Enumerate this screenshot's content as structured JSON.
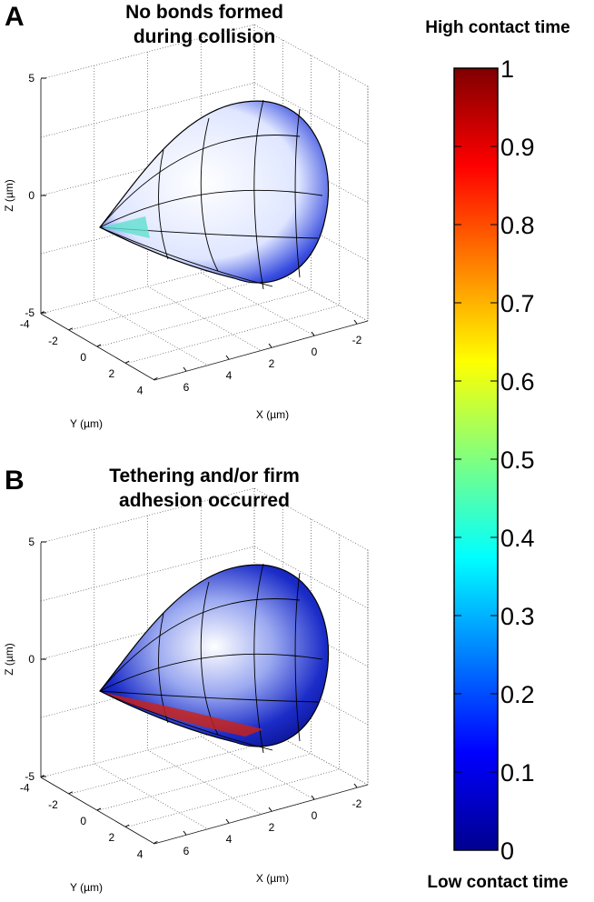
{
  "panels": [
    {
      "label": "A",
      "title": [
        "No bonds formed",
        "during collision"
      ],
      "zticks": [
        5,
        0,
        -5
      ],
      "yticks": [
        -4,
        -2,
        0,
        2,
        4
      ],
      "xticks": [
        6,
        4,
        2,
        0,
        -2
      ],
      "xlabel": "X (µm)",
      "ylabel": "Y (µm)",
      "zlabel": "Z (µm)"
    },
    {
      "label": "B",
      "title": [
        "Tethering and/or firm",
        "adhesion occurred"
      ],
      "zticks": [
        5,
        0,
        -5
      ],
      "yticks": [
        -4,
        -2,
        0,
        2,
        4
      ],
      "xticks": [
        6,
        4,
        2,
        0,
        -2
      ],
      "xlabel": "X (µm)",
      "ylabel": "Y (µm)",
      "zlabel": "Z (µm)"
    }
  ],
  "colorbar": {
    "title_top": "High contact time",
    "title_bottom": "Low contact time",
    "lim": [
      0,
      1
    ],
    "ticks": [
      0,
      0.1,
      0.2,
      0.3,
      0.4,
      0.5,
      0.6,
      0.7,
      0.8,
      0.9,
      1
    ]
  }
}
